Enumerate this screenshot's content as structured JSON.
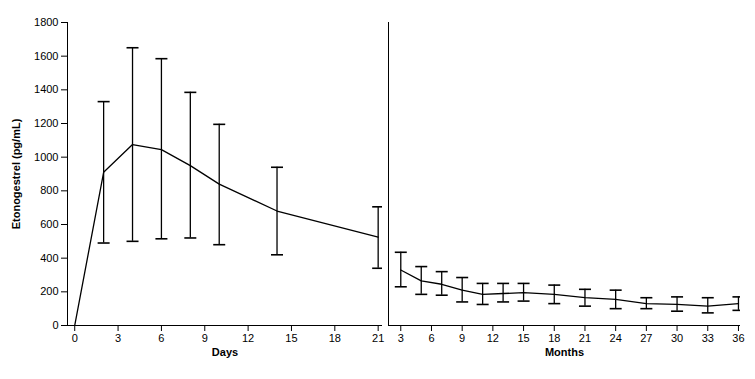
{
  "chart_data": [
    {
      "type": "line",
      "y_label": "Etonogestrel (pg/mL)",
      "x_label": "Days",
      "x": [
        0,
        2,
        4,
        6,
        8,
        10,
        14,
        21
      ],
      "values": [
        0,
        910,
        1075,
        1045,
        950,
        840,
        680,
        525
      ],
      "lower": [
        null,
        490,
        500,
        515,
        520,
        480,
        420,
        340
      ],
      "upper": [
        null,
        1330,
        1650,
        1585,
        1385,
        1195,
        940,
        705
      ],
      "color": "#000000",
      "xlim": [
        -0.5,
        21.3
      ],
      "xticks": [
        0,
        3,
        6,
        9,
        12,
        15,
        18,
        21
      ],
      "ylim": [
        0,
        1800
      ],
      "yticks": [
        0,
        200,
        400,
        600,
        800,
        1000,
        1200,
        1400,
        1600,
        1800
      ]
    },
    {
      "type": "line",
      "x_label": "Months",
      "x": [
        3,
        5,
        7,
        9,
        11,
        13,
        15,
        18,
        21,
        24,
        27,
        30,
        33,
        36
      ],
      "values": [
        330,
        265,
        245,
        210,
        185,
        190,
        195,
        185,
        165,
        155,
        130,
        125,
        115,
        130
      ],
      "lower": [
        230,
        185,
        180,
        140,
        125,
        140,
        145,
        130,
        115,
        100,
        100,
        85,
        75,
        90
      ],
      "upper": [
        435,
        350,
        320,
        285,
        250,
        250,
        250,
        240,
        215,
        210,
        165,
        170,
        165,
        170
      ],
      "color": "#000000",
      "xlim": [
        1.8,
        36.2
      ],
      "xticks": [
        3,
        6,
        9,
        12,
        15,
        18,
        21,
        24,
        27,
        30,
        33,
        36
      ],
      "ylim": [
        0,
        1800
      ],
      "tick_labels": "x"
    }
  ]
}
